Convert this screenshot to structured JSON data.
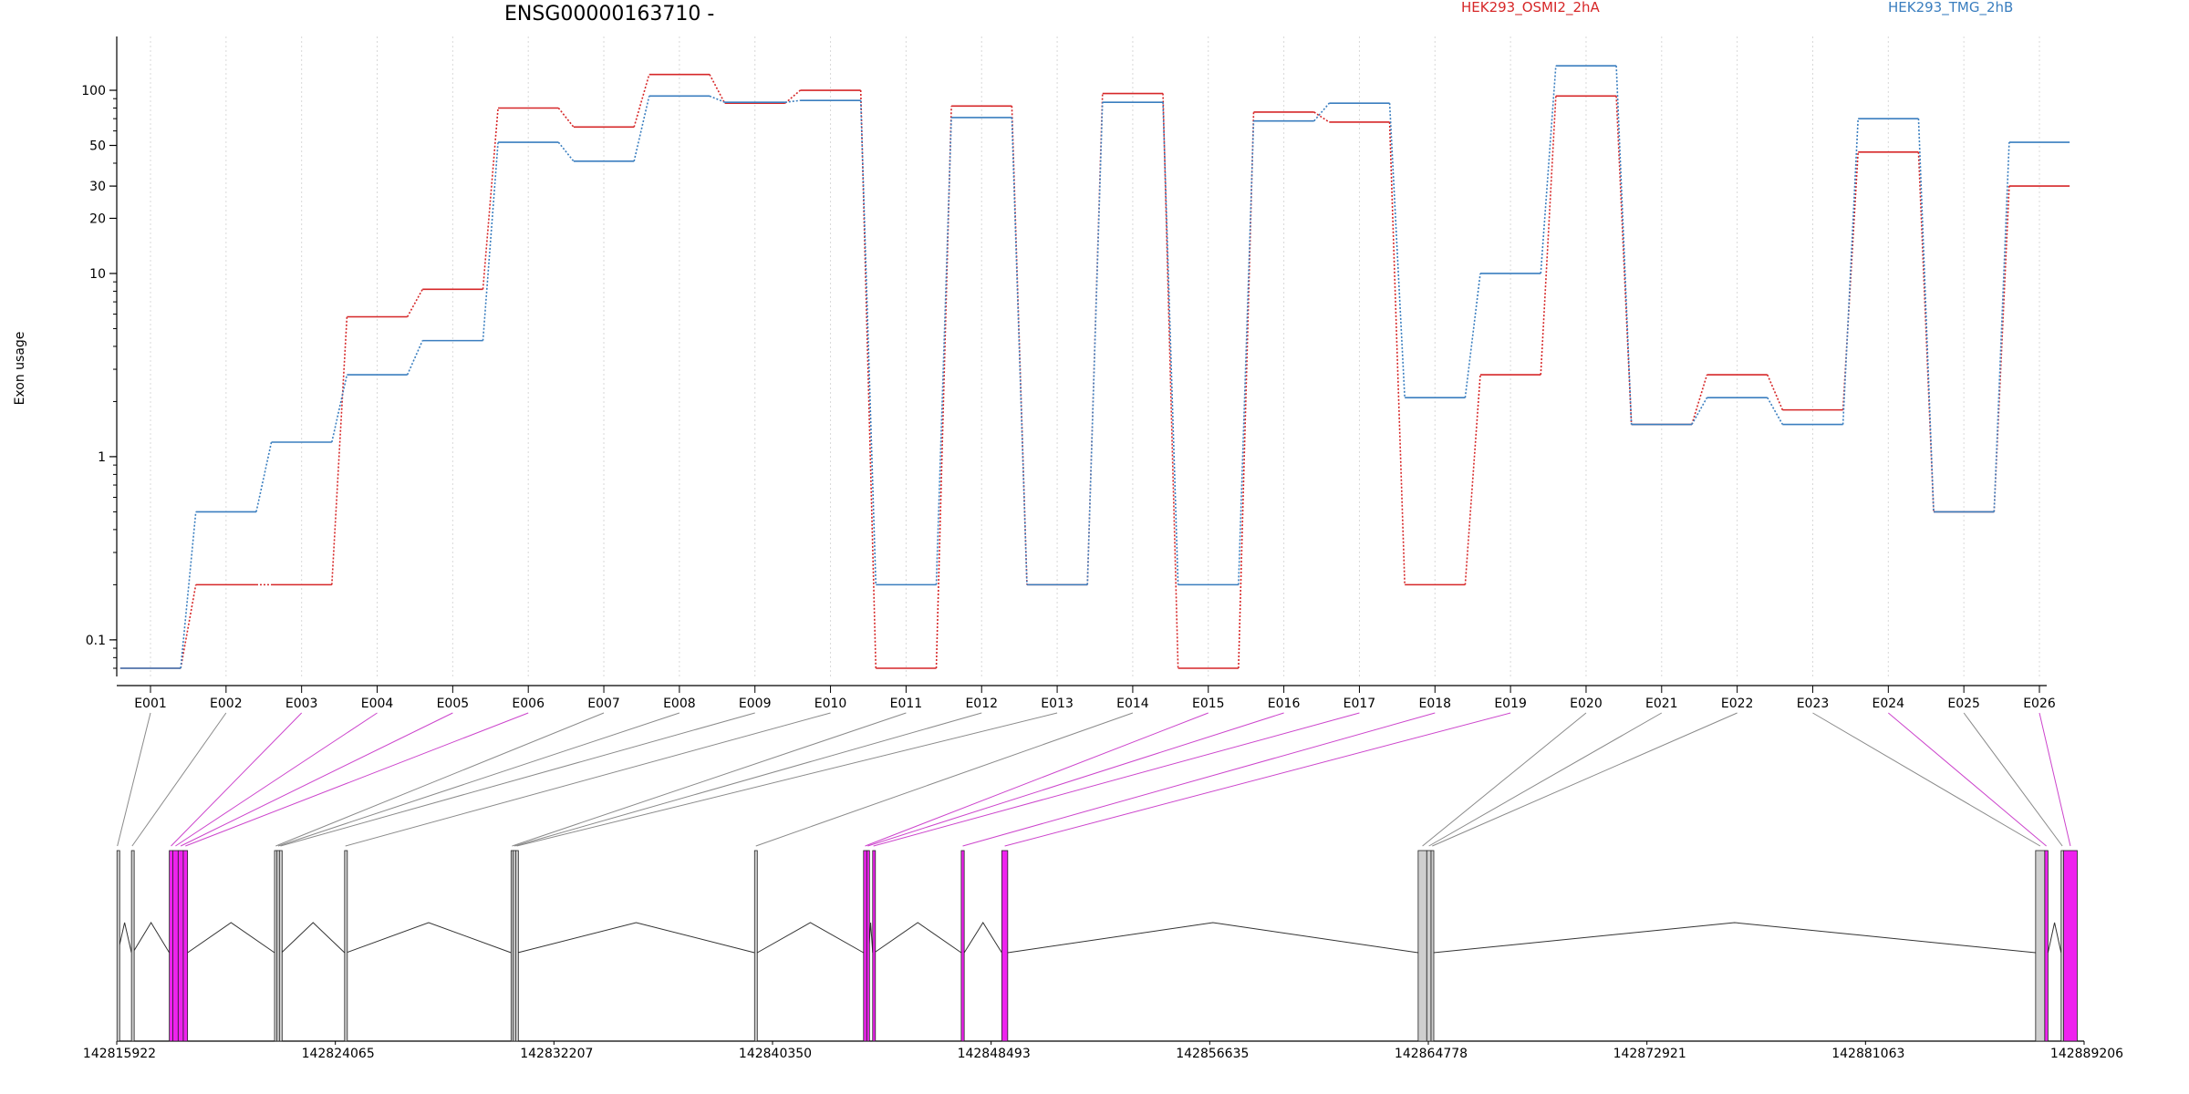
{
  "chart_data": {
    "type": "line",
    "title": "ENSG00000163710 -",
    "ylabel": "Exon usage",
    "xlabel": "",
    "y_scale": "log",
    "ylim": [
      0.07,
      160
    ],
    "y_ticks": [
      0.1,
      1,
      10,
      20,
      30,
      50,
      100
    ],
    "y_tick_labels": [
      "0.1",
      "1",
      "10",
      "20",
      "30",
      "50",
      "100"
    ],
    "grid": "vertical dotted lines at each exon",
    "legend_placement": "top",
    "categories": [
      "E001",
      "E002",
      "E003",
      "E004",
      "E005",
      "E006",
      "E007",
      "E008",
      "E009",
      "E010",
      "E011",
      "E012",
      "E013",
      "E014",
      "E015",
      "E016",
      "E017",
      "E018",
      "E019",
      "E020",
      "E021",
      "E022",
      "E023",
      "E024",
      "E025",
      "E026"
    ],
    "series": [
      {
        "name": "HEK293_OSMI2_2hA",
        "color": "#d62728",
        "values": [
          0.07,
          0.2,
          0.2,
          5.8,
          8.2,
          80,
          63,
          122,
          85,
          100,
          0.07,
          82,
          0.2,
          96,
          0.07,
          76,
          67,
          0.2,
          2.8,
          93,
          1.5,
          2.8,
          1.8,
          46,
          0.5,
          30
        ]
      },
      {
        "name": "HEK293_TMG_2hB",
        "color": "#3a7ebf",
        "values": [
          0.07,
          0.5,
          1.2,
          2.8,
          4.3,
          52,
          41,
          93,
          86,
          88,
          0.2,
          71,
          0.2,
          86,
          0.2,
          68,
          85,
          2.1,
          10,
          136,
          1.5,
          2.1,
          1.5,
          70,
          0.5,
          52
        ]
      }
    ],
    "gene_model": {
      "coordinate_ticks": [
        "142815922",
        "142824065",
        "142832207",
        "142840350",
        "142848493",
        "142856635",
        "142864778",
        "142872921",
        "142881063",
        "142889206"
      ],
      "coordinate_range": [
        142815922,
        142889206
      ],
      "highlight_color": "#ee22ee",
      "exons": [
        {
          "id": "E001",
          "start": 142815930,
          "end": 142815960,
          "highlighted": false
        },
        {
          "id": "E002",
          "start": 142816470,
          "end": 142816520,
          "highlighted": false
        },
        {
          "id": "E003",
          "start": 142817880,
          "end": 142818010,
          "highlighted": true
        },
        {
          "id": "E004",
          "start": 142818010,
          "end": 142818210,
          "highlighted": true
        },
        {
          "id": "E005",
          "start": 142818210,
          "end": 142818400,
          "highlighted": true
        },
        {
          "id": "E006",
          "start": 142818400,
          "end": 142818560,
          "highlighted": true
        },
        {
          "id": "E007",
          "start": 142821800,
          "end": 142821890,
          "highlighted": false
        },
        {
          "id": "E008",
          "start": 142821890,
          "end": 142821980,
          "highlighted": false
        },
        {
          "id": "E009",
          "start": 142821980,
          "end": 142822060,
          "highlighted": false
        },
        {
          "id": "E010",
          "start": 142824410,
          "end": 142824470,
          "highlighted": false
        },
        {
          "id": "E011",
          "start": 142830610,
          "end": 142830690,
          "highlighted": false
        },
        {
          "id": "E012",
          "start": 142830690,
          "end": 142830780,
          "highlighted": false
        },
        {
          "id": "E013",
          "start": 142830780,
          "end": 142830860,
          "highlighted": false
        },
        {
          "id": "E014",
          "start": 142839680,
          "end": 142839780,
          "highlighted": false
        },
        {
          "id": "E015",
          "start": 142843740,
          "end": 142843860,
          "highlighted": true
        },
        {
          "id": "E016",
          "start": 142843860,
          "end": 142843930,
          "highlighted": true
        },
        {
          "id": "E017",
          "start": 142844080,
          "end": 142844140,
          "highlighted": true
        },
        {
          "id": "E018",
          "start": 142847380,
          "end": 142847490,
          "highlighted": true
        },
        {
          "id": "E019",
          "start": 142848890,
          "end": 142849110,
          "highlighted": true
        },
        {
          "id": "E020",
          "start": 142864400,
          "end": 142864720,
          "highlighted": false
        },
        {
          "id": "E021",
          "start": 142864720,
          "end": 142864880,
          "highlighted": false
        },
        {
          "id": "E022",
          "start": 142864880,
          "end": 142864970,
          "highlighted": false
        },
        {
          "id": "E023",
          "start": 142887400,
          "end": 142887740,
          "highlighted": false
        },
        {
          "id": "E024",
          "start": 142887740,
          "end": 142887860,
          "highlighted": true
        },
        {
          "id": "E025",
          "start": 142888350,
          "end": 142888440,
          "highlighted": false
        },
        {
          "id": "E026",
          "start": 142888440,
          "end": 142888950,
          "highlighted": true
        }
      ]
    }
  }
}
